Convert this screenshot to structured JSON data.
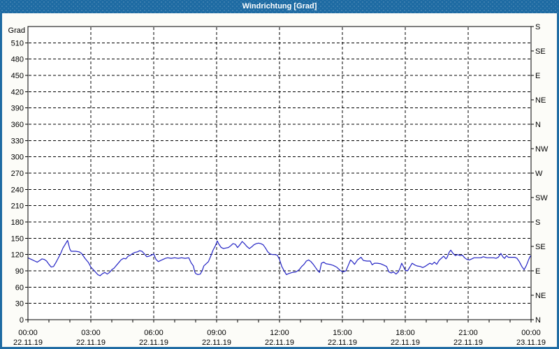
{
  "window": {
    "title": "Windrichtung [Grad]"
  },
  "chart_data": {
    "type": "line",
    "title": "Windrichtung [Grad]",
    "grid": {
      "style": "dashed",
      "h_step_grad": 30,
      "v_step_hours": 3,
      "minor_x_tick_hours": 1
    },
    "colors": {
      "titlebar": "#1e6ba3",
      "window_border": "#1e6ba3",
      "background": "#fcfcf8",
      "plot_background": "#ffffff",
      "grid": "#000000",
      "axis": "#000000",
      "text": "#000000",
      "line": "#2323c4"
    },
    "y_left": {
      "label": "Grad",
      "min": 0,
      "max": 540,
      "ticks": [
        510,
        480,
        450,
        420,
        390,
        360,
        330,
        300,
        270,
        240,
        210,
        180,
        150,
        120,
        90,
        60,
        30,
        0
      ]
    },
    "y_right": {
      "ticks": [
        {
          "value": 540,
          "label": "S"
        },
        {
          "value": 495,
          "label": "SE"
        },
        {
          "value": 450,
          "label": "E"
        },
        {
          "value": 405,
          "label": "NE"
        },
        {
          "value": 360,
          "label": "N"
        },
        {
          "value": 315,
          "label": "NW"
        },
        {
          "value": 270,
          "label": "W"
        },
        {
          "value": 225,
          "label": "SW"
        },
        {
          "value": 180,
          "label": "S"
        },
        {
          "value": 135,
          "label": "SE"
        },
        {
          "value": 90,
          "label": "E"
        },
        {
          "value": 45,
          "label": "NE"
        },
        {
          "value": 0,
          "label": "N"
        }
      ]
    },
    "x": {
      "min_hours": 0,
      "max_hours": 24,
      "ticks": [
        {
          "hour": 0,
          "time": "00:00",
          "date": "22.11.19"
        },
        {
          "hour": 3,
          "time": "03:00",
          "date": "22.11.19"
        },
        {
          "hour": 6,
          "time": "06:00",
          "date": "22.11.19"
        },
        {
          "hour": 9,
          "time": "09:00",
          "date": "22.11.19"
        },
        {
          "hour": 12,
          "time": "12:00",
          "date": "22.11.19"
        },
        {
          "hour": 15,
          "time": "15:00",
          "date": "22.11.19"
        },
        {
          "hour": 18,
          "time": "18:00",
          "date": "22.11.19"
        },
        {
          "hour": 21,
          "time": "21:00",
          "date": "22.11.19"
        },
        {
          "hour": 24,
          "time": "00:00",
          "date": "23.11.19"
        }
      ]
    },
    "series": [
      {
        "name": "Windrichtung",
        "color": "#2323c4",
        "points": [
          [
            0,
            114
          ],
          [
            0.11,
            112
          ],
          [
            0.22,
            110
          ],
          [
            0.33,
            108
          ],
          [
            0.44,
            106
          ],
          [
            0.56,
            109
          ],
          [
            0.67,
            112
          ],
          [
            0.78,
            111
          ],
          [
            0.89,
            108
          ],
          [
            1,
            102
          ],
          [
            1.11,
            97
          ],
          [
            1.22,
            98
          ],
          [
            1.33,
            105
          ],
          [
            1.44,
            113
          ],
          [
            1.56,
            122
          ],
          [
            1.67,
            132
          ],
          [
            1.78,
            139
          ],
          [
            1.89,
            146
          ],
          [
            2,
            130
          ],
          [
            2.06,
            126
          ],
          [
            2.17,
            126
          ],
          [
            2.28,
            126
          ],
          [
            2.44,
            125
          ],
          [
            2.56,
            122
          ],
          [
            2.72,
            113
          ],
          [
            2.89,
            105
          ],
          [
            3,
            97
          ],
          [
            3.17,
            90
          ],
          [
            3.33,
            83
          ],
          [
            3.44,
            81
          ],
          [
            3.56,
            85
          ],
          [
            3.67,
            87
          ],
          [
            3.78,
            84
          ],
          [
            3.89,
            87
          ],
          [
            4,
            92
          ],
          [
            4.11,
            95
          ],
          [
            4.22,
            100
          ],
          [
            4.33,
            105
          ],
          [
            4.44,
            110
          ],
          [
            4.56,
            113
          ],
          [
            4.67,
            112
          ],
          [
            4.78,
            117
          ],
          [
            4.89,
            119
          ],
          [
            5,
            122
          ],
          [
            5.11,
            124
          ],
          [
            5.22,
            125
          ],
          [
            5.33,
            127
          ],
          [
            5.44,
            126
          ],
          [
            5.56,
            121
          ],
          [
            5.67,
            116
          ],
          [
            5.78,
            117
          ],
          [
            5.89,
            119
          ],
          [
            6,
            121
          ],
          [
            6.11,
            111
          ],
          [
            6.22,
            107
          ],
          [
            6.33,
            109
          ],
          [
            6.44,
            111
          ],
          [
            6.56,
            113
          ],
          [
            6.67,
            114
          ],
          [
            6.83,
            113
          ],
          [
            7,
            114
          ],
          [
            7.17,
            113
          ],
          [
            7.33,
            114
          ],
          [
            7.5,
            113
          ],
          [
            7.67,
            114
          ],
          [
            7.78,
            105
          ],
          [
            7.89,
            99
          ],
          [
            7.96,
            88
          ],
          [
            8,
            85
          ],
          [
            8.11,
            83
          ],
          [
            8.22,
            84
          ],
          [
            8.31,
            90
          ],
          [
            8.39,
            99
          ],
          [
            8.5,
            103
          ],
          [
            8.61,
            107
          ],
          [
            8.72,
            117
          ],
          [
            8.83,
            128
          ],
          [
            8.94,
            136
          ],
          [
            9.03,
            145
          ],
          [
            9.11,
            139
          ],
          [
            9.22,
            133
          ],
          [
            9.33,
            131
          ],
          [
            9.44,
            132
          ],
          [
            9.56,
            133
          ],
          [
            9.67,
            136
          ],
          [
            9.78,
            140
          ],
          [
            9.89,
            139
          ],
          [
            10,
            133
          ],
          [
            10.11,
            138
          ],
          [
            10.22,
            144
          ],
          [
            10.33,
            140
          ],
          [
            10.44,
            135
          ],
          [
            10.56,
            131
          ],
          [
            10.67,
            134
          ],
          [
            10.78,
            138
          ],
          [
            10.89,
            140
          ],
          [
            11,
            141
          ],
          [
            11.11,
            140
          ],
          [
            11.22,
            138
          ],
          [
            11.33,
            132
          ],
          [
            11.44,
            125
          ],
          [
            11.56,
            121
          ],
          [
            11.67,
            120
          ],
          [
            11.78,
            120
          ],
          [
            11.89,
            119
          ],
          [
            12,
            111
          ],
          [
            12.11,
            98
          ],
          [
            12.22,
            90
          ],
          [
            12.33,
            83
          ],
          [
            12.44,
            85
          ],
          [
            12.61,
            87
          ],
          [
            12.78,
            88
          ],
          [
            12.94,
            92
          ],
          [
            13.06,
            98
          ],
          [
            13.17,
            102
          ],
          [
            13.28,
            108
          ],
          [
            13.39,
            110
          ],
          [
            13.5,
            107
          ],
          [
            13.61,
            102
          ],
          [
            13.72,
            96
          ],
          [
            13.83,
            90
          ],
          [
            13.91,
            87
          ],
          [
            14,
            104
          ],
          [
            14.11,
            106
          ],
          [
            14.22,
            103
          ],
          [
            14.39,
            102
          ],
          [
            14.56,
            100
          ],
          [
            14.72,
            97
          ],
          [
            14.89,
            91
          ],
          [
            15.02,
            88
          ],
          [
            15.17,
            90
          ],
          [
            15.28,
            100
          ],
          [
            15.39,
            110
          ],
          [
            15.5,
            106
          ],
          [
            15.58,
            102
          ],
          [
            15.72,
            110
          ],
          [
            15.89,
            115
          ],
          [
            16,
            109
          ],
          [
            16.17,
            108
          ],
          [
            16.33,
            108
          ],
          [
            16.42,
            101
          ],
          [
            16.53,
            104
          ],
          [
            16.67,
            104
          ],
          [
            16.83,
            103
          ],
          [
            17,
            100
          ],
          [
            17.11,
            98
          ],
          [
            17.22,
            88
          ],
          [
            17.33,
            86
          ],
          [
            17.44,
            88
          ],
          [
            17.56,
            84
          ],
          [
            17.67,
            88
          ],
          [
            17.76,
            96
          ],
          [
            17.83,
            104
          ],
          [
            17.91,
            98
          ],
          [
            18,
            91
          ],
          [
            18.11,
            90
          ],
          [
            18.22,
            97
          ],
          [
            18.33,
            104
          ],
          [
            18.44,
            101
          ],
          [
            18.56,
            99
          ],
          [
            18.72,
            98
          ],
          [
            18.83,
            96
          ],
          [
            18.94,
            98
          ],
          [
            19.06,
            101
          ],
          [
            19.17,
            104
          ],
          [
            19.28,
            102
          ],
          [
            19.39,
            106
          ],
          [
            19.5,
            102
          ],
          [
            19.61,
            109
          ],
          [
            19.72,
            113
          ],
          [
            19.83,
            117
          ],
          [
            19.94,
            112
          ],
          [
            20,
            115
          ],
          [
            20.09,
            124
          ],
          [
            20.17,
            128
          ],
          [
            20.28,
            122
          ],
          [
            20.39,
            118
          ],
          [
            20.5,
            120
          ],
          [
            20.61,
            118
          ],
          [
            20.72,
            119
          ],
          [
            20.83,
            114
          ],
          [
            20.94,
            111
          ],
          [
            21.06,
            110
          ],
          [
            21.17,
            112
          ],
          [
            21.28,
            114
          ],
          [
            21.44,
            114
          ],
          [
            21.61,
            114
          ],
          [
            21.72,
            116
          ],
          [
            21.89,
            114
          ],
          [
            22.06,
            114
          ],
          [
            22.22,
            114
          ],
          [
            22.33,
            113
          ],
          [
            22.44,
            115
          ],
          [
            22.56,
            122
          ],
          [
            22.67,
            115
          ],
          [
            22.74,
            113
          ],
          [
            22.83,
            118
          ],
          [
            22.91,
            115
          ],
          [
            23.06,
            115
          ],
          [
            23.22,
            115
          ],
          [
            23.33,
            113
          ],
          [
            23.44,
            107
          ],
          [
            23.56,
            98
          ],
          [
            23.67,
            92
          ],
          [
            23.78,
            100
          ],
          [
            23.89,
            111
          ],
          [
            23.98,
            118
          ]
        ]
      }
    ]
  }
}
